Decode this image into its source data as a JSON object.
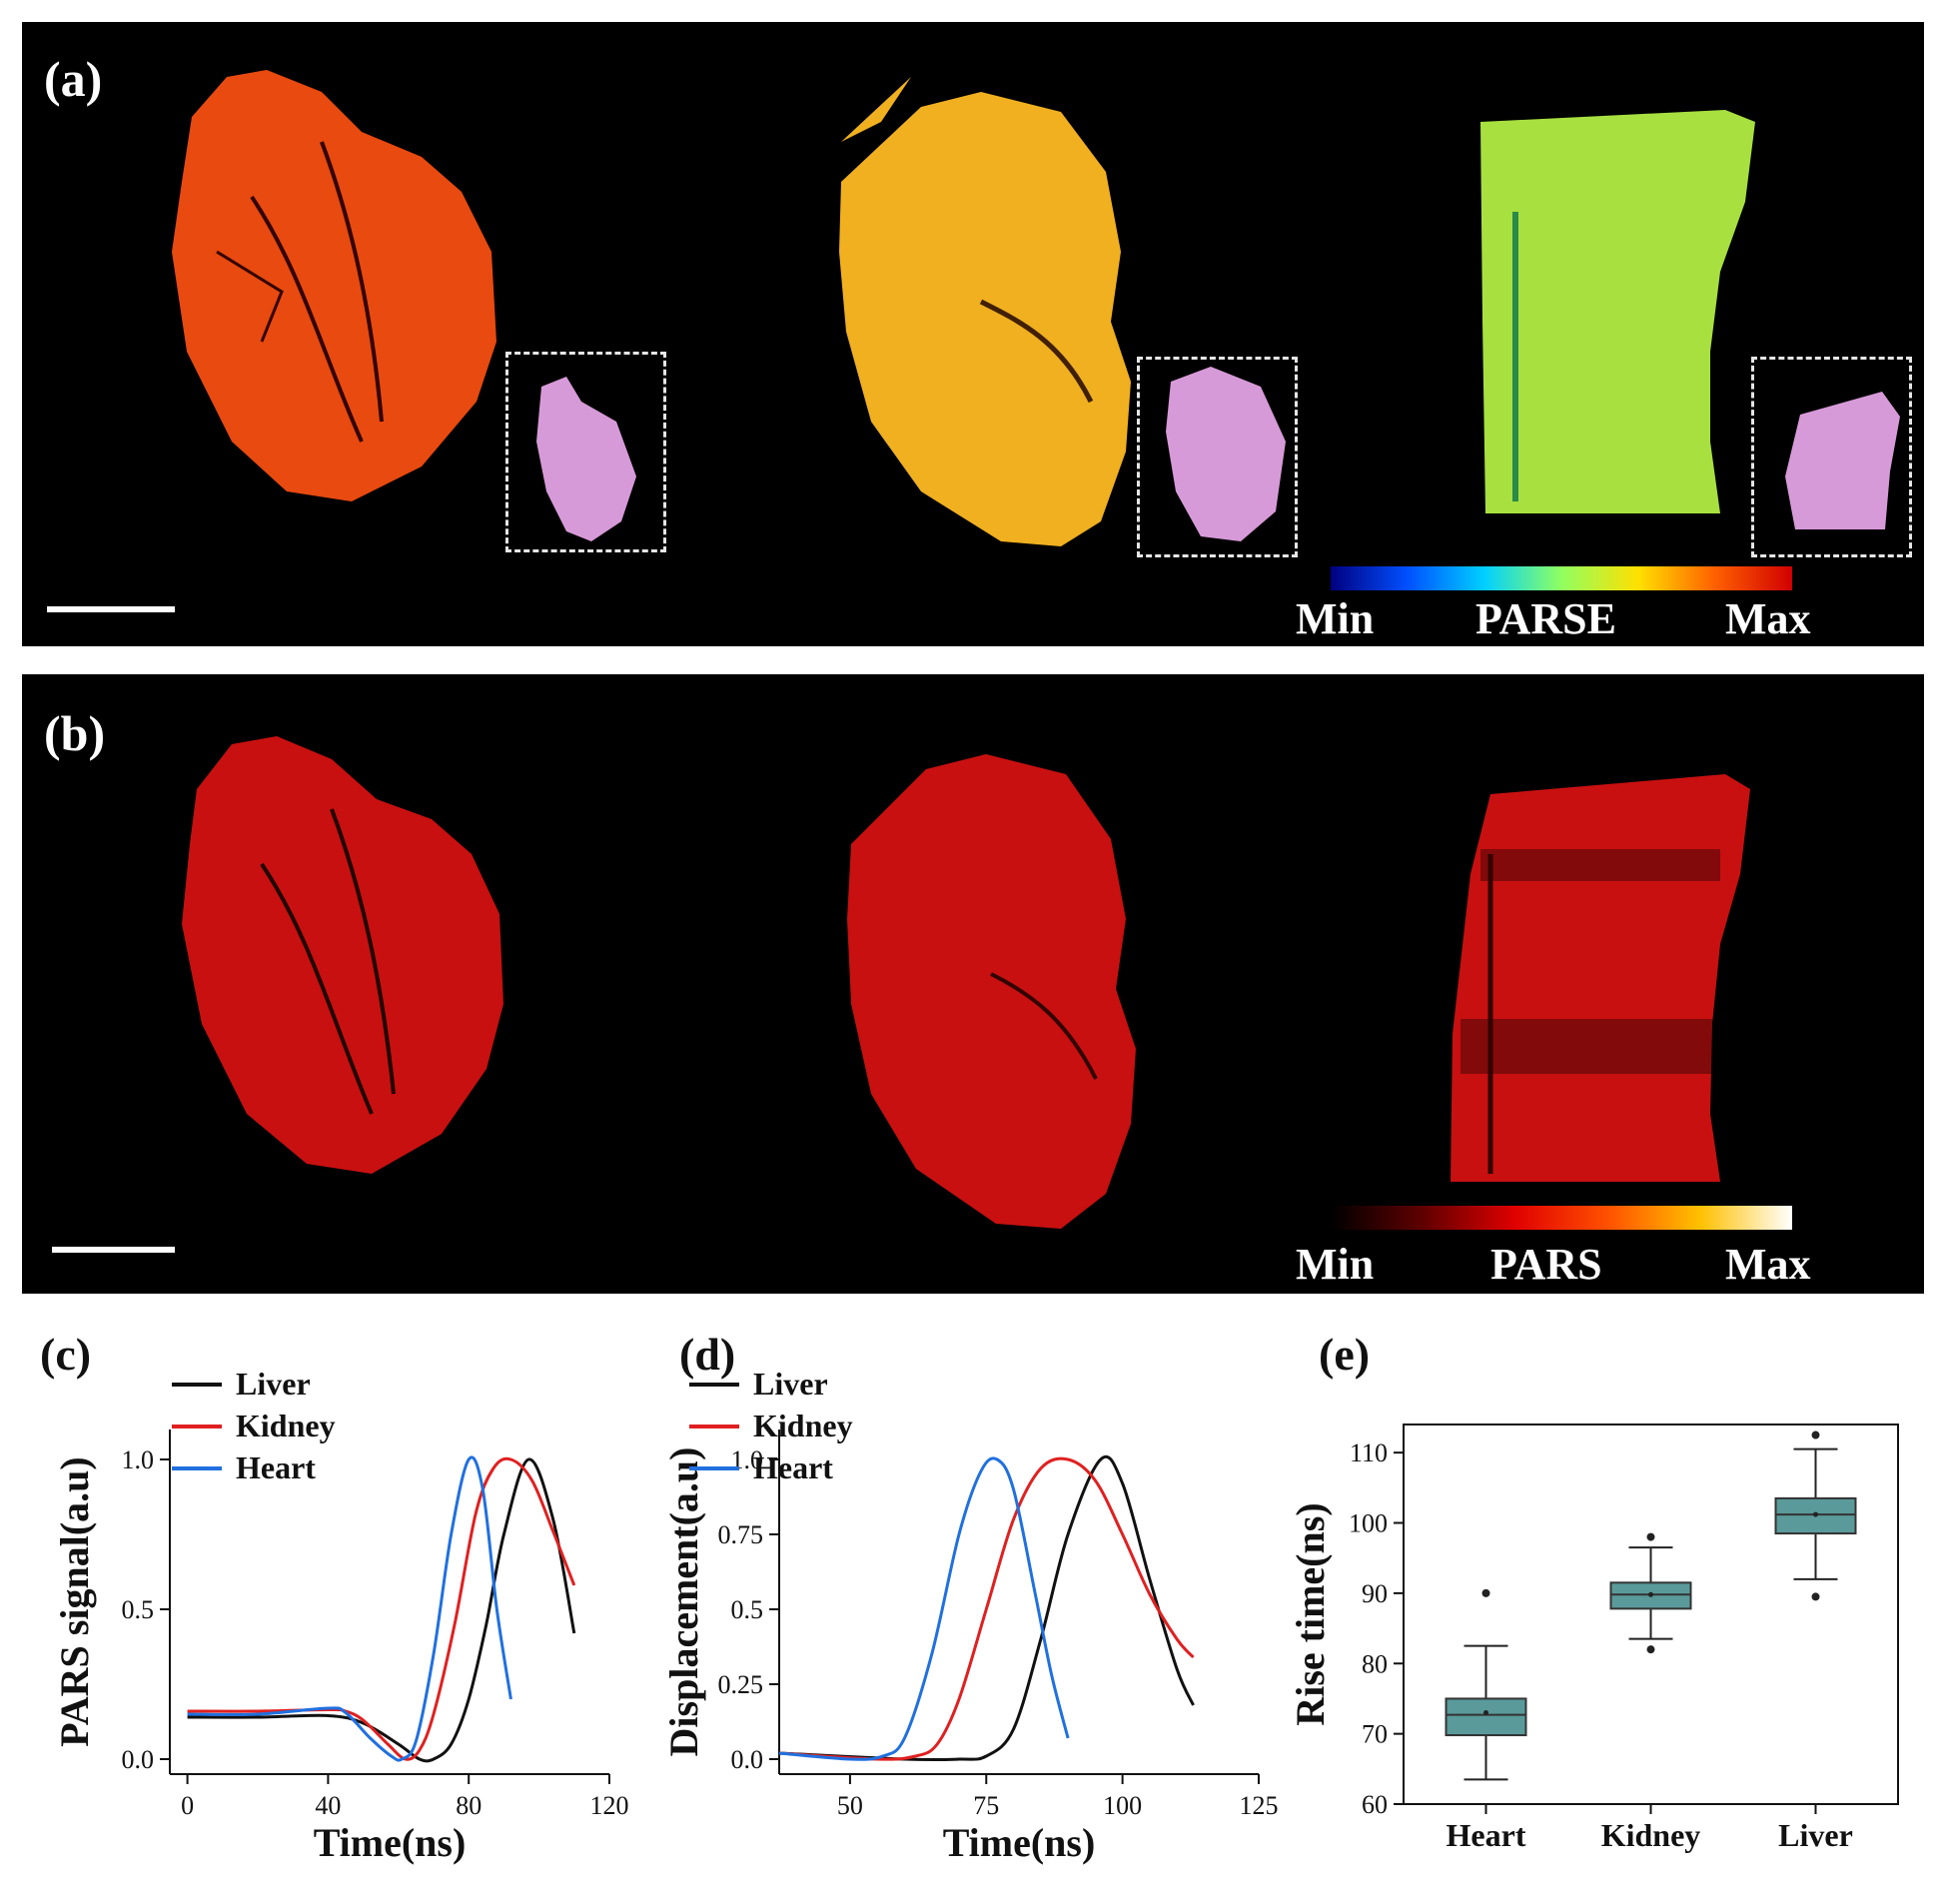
{
  "panel_a": {
    "label": "(a)",
    "colorbar": {
      "min": "Min",
      "name": "PARSE",
      "max": "Max",
      "colors": [
        "#000080",
        "#0050ff",
        "#00d0ff",
        "#90ff60",
        "#ffe000",
        "#ff6000",
        "#d00000"
      ]
    },
    "organ_colors": {
      "heart": "#e84a10",
      "kidney": "#f0b020",
      "liver": "#a8e040"
    },
    "inset_color": "#d79ad8"
  },
  "panel_b": {
    "label": "(b)",
    "colorbar": {
      "min": "Min",
      "name": "PARS",
      "max": "Max",
      "colors": [
        "#000000",
        "#600000",
        "#e00000",
        "#ff5000",
        "#ffc000",
        "#ffffff"
      ]
    },
    "organ_color": "#c81010"
  },
  "chart_data": [
    {
      "panel": "(c)",
      "type": "line",
      "xlabel": "Time(ns)",
      "ylabel": "PARS signal(a.u)",
      "xlim": [
        -5,
        120
      ],
      "ylim": [
        -0.05,
        1.1
      ],
      "xticks": [
        0,
        40,
        80,
        120
      ],
      "yticks": [
        0.0,
        0.5,
        1.0
      ],
      "ytick_labels": [
        "0.0",
        "0.5",
        "1.0"
      ],
      "series": [
        {
          "name": "Liver",
          "color": "#111111",
          "x": [
            0,
            20,
            40,
            50,
            60,
            66,
            70,
            75,
            80,
            85,
            90,
            97,
            104,
            110
          ],
          "y": [
            0.14,
            0.14,
            0.145,
            0.12,
            0.05,
            0.0,
            0.0,
            0.05,
            0.2,
            0.45,
            0.75,
            1.0,
            0.8,
            0.42
          ]
        },
        {
          "name": "Kidney",
          "color": "#e02020",
          "x": [
            0,
            20,
            40,
            45,
            50,
            57,
            62,
            66,
            70,
            76,
            82,
            87,
            92,
            98,
            104,
            110
          ],
          "y": [
            0.16,
            0.16,
            0.165,
            0.16,
            0.13,
            0.05,
            0.0,
            0.03,
            0.15,
            0.45,
            0.82,
            0.97,
            1.0,
            0.93,
            0.76,
            0.58
          ]
        },
        {
          "name": "Heart",
          "color": "#2070e0",
          "x": [
            0,
            20,
            40,
            45,
            52,
            58,
            61,
            65,
            70,
            75,
            80,
            84,
            88,
            92
          ],
          "y": [
            0.15,
            0.15,
            0.17,
            0.155,
            0.07,
            0.01,
            0.0,
            0.06,
            0.35,
            0.75,
            1.0,
            0.9,
            0.5,
            0.2
          ]
        }
      ]
    },
    {
      "panel": "(d)",
      "type": "line",
      "xlabel": "Time(ns)",
      "ylabel": "Displacement(a.u)",
      "xlim": [
        37,
        125
      ],
      "ylim": [
        -0.05,
        1.1
      ],
      "xticks": [
        50,
        75,
        100,
        125
      ],
      "yticks": [
        0.0,
        0.25,
        0.5,
        0.75,
        1.0
      ],
      "ytick_labels": [
        "0.0",
        "0.25",
        "0.5",
        "0.75",
        "1.0"
      ],
      "series": [
        {
          "name": "Liver",
          "color": "#111111",
          "x": [
            37,
            60,
            70,
            75,
            80,
            85,
            90,
            96,
            100,
            105,
            110,
            113
          ],
          "y": [
            0.02,
            0.0,
            0.0,
            0.01,
            0.1,
            0.4,
            0.75,
            1.0,
            0.92,
            0.6,
            0.3,
            0.18
          ]
        },
        {
          "name": "Kidney",
          "color": "#e02020",
          "x": [
            37,
            55,
            62,
            66,
            70,
            75,
            80,
            85,
            90,
            95,
            100,
            105,
            110,
            113
          ],
          "y": [
            0.02,
            0.0,
            0.01,
            0.05,
            0.2,
            0.5,
            0.8,
            0.97,
            1.0,
            0.93,
            0.75,
            0.55,
            0.4,
            0.34
          ]
        },
        {
          "name": "Heart",
          "color": "#2070e0",
          "x": [
            37,
            50,
            56,
            60,
            65,
            70,
            74,
            77,
            80,
            84,
            87,
            90
          ],
          "y": [
            0.02,
            0.0,
            0.01,
            0.07,
            0.35,
            0.75,
            0.96,
            1.0,
            0.9,
            0.55,
            0.28,
            0.07
          ]
        }
      ]
    },
    {
      "panel": "(e)",
      "type": "box",
      "ylabel": "Rise time(ns)",
      "ylim": [
        60,
        114
      ],
      "yticks": [
        60,
        70,
        80,
        90,
        100,
        110
      ],
      "categories": [
        "Heart",
        "Kidney",
        "Liver"
      ],
      "color": "#5a9a9a",
      "boxes": [
        {
          "whisker_low": 63.5,
          "q1": 69.8,
          "median": 72.7,
          "mean": 73.0,
          "q3": 75.0,
          "whisker_high": 82.5,
          "outliers": [
            90
          ]
        },
        {
          "whisker_low": 83.5,
          "q1": 87.8,
          "median": 89.8,
          "mean": 89.8,
          "q3": 91.5,
          "whisker_high": 96.5,
          "outliers": [
            82,
            98
          ]
        },
        {
          "whisker_low": 92.0,
          "q1": 98.5,
          "median": 101.2,
          "mean": 101.2,
          "q3": 103.5,
          "whisker_high": 110.5,
          "outliers": [
            89.5,
            112.5
          ]
        }
      ]
    }
  ]
}
